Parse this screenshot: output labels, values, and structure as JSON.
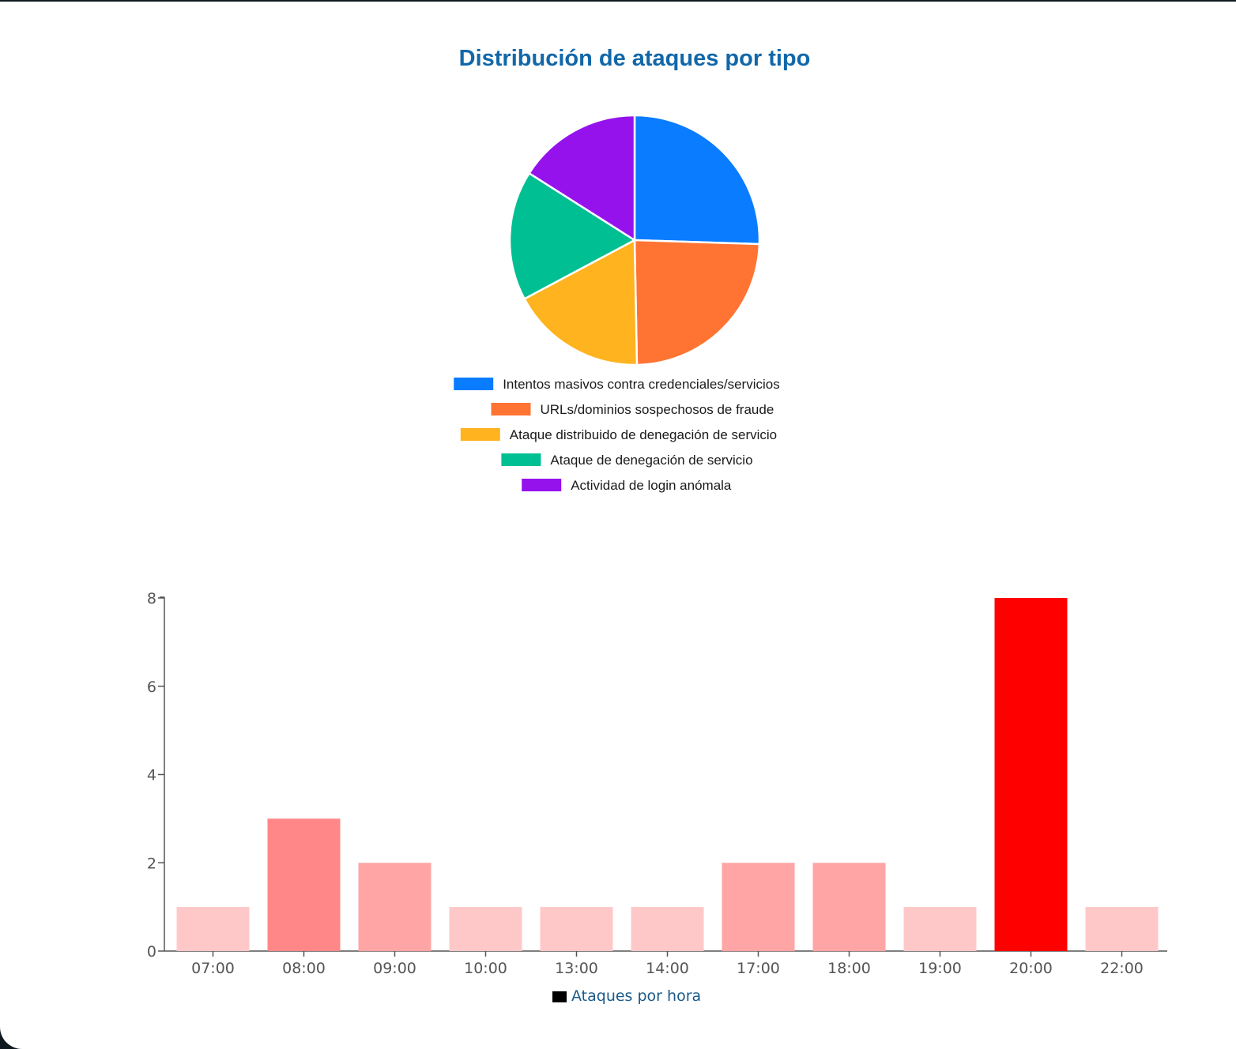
{
  "pie": {
    "title": "Distribución de ataques por tipo"
  },
  "chart_data": [
    {
      "type": "pie",
      "title": "Distribución de ataques por tipo",
      "legend_position": "bottom",
      "slices": [
        {
          "label": "Intentos masivos contra credenciales/servicios",
          "value": 25.5,
          "color": "#0a7cff"
        },
        {
          "label": "URLs/dominios sospechosos de fraude",
          "value": 24.2,
          "color": "#ff7433"
        },
        {
          "label": "Ataque distribuido de denegación de servicio",
          "value": 17.5,
          "color": "#ffb31f"
        },
        {
          "label": "Ataque de denegación de servicio",
          "value": 16.8,
          "color": "#00bf92"
        },
        {
          "label": "Actividad de login anómala",
          "value": 16.0,
          "color": "#9512ec"
        }
      ]
    },
    {
      "type": "bar",
      "categories": [
        "07:00",
        "08:00",
        "09:00",
        "10:00",
        "13:00",
        "14:00",
        "17:00",
        "18:00",
        "19:00",
        "20:00",
        "22:00"
      ],
      "series": [
        {
          "name": "Ataques por hora",
          "values": [
            1,
            3,
            2,
            1,
            1,
            1,
            2,
            2,
            1,
            8,
            1
          ]
        }
      ],
      "bar_colors": [
        "#ffc8c8",
        "#ff8787",
        "#ffa5a5",
        "#ffc8c8",
        "#ffc8c8",
        "#ffc8c8",
        "#ffa5a5",
        "#ffa5a5",
        "#ffc8c8",
        "#ff0000",
        "#ffc8c8"
      ],
      "yticks": [
        0,
        2,
        4,
        6,
        8
      ],
      "ylim": [
        0,
        8
      ],
      "grid": false,
      "legend_position": "bottom",
      "legend_color": "#000000"
    }
  ]
}
